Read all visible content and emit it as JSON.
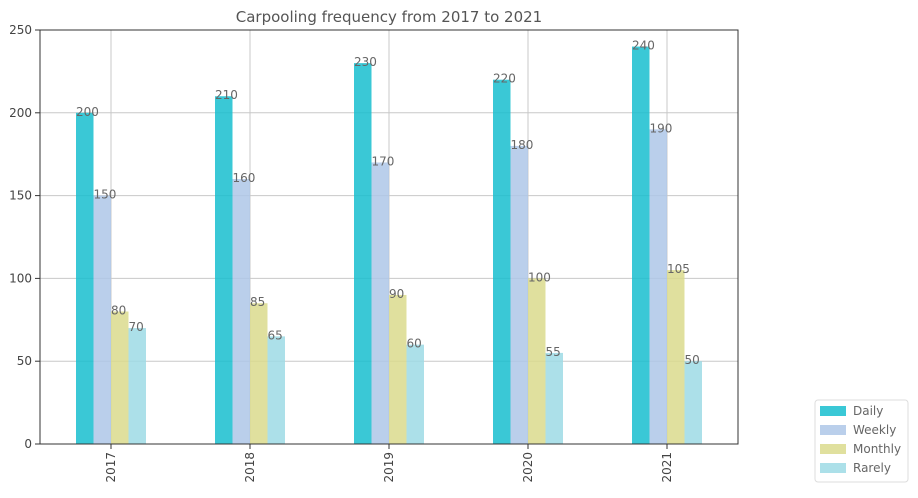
{
  "chart_data": {
    "type": "bar",
    "title": "Carpooling frequency from 2017 to 2021",
    "xlabel": "",
    "ylabel": "",
    "categories": [
      "2017",
      "2018",
      "2019",
      "2020",
      "2021"
    ],
    "ylim": [
      0,
      250
    ],
    "yticks": [
      0,
      50,
      100,
      150,
      200,
      250
    ],
    "grid": true,
    "legend_position": "bottom-right",
    "series": [
      {
        "name": "Daily",
        "color": "#17becf",
        "values": [
          200,
          210,
          230,
          220,
          240
        ]
      },
      {
        "name": "Weekly",
        "color": "#aec7e8",
        "values": [
          150,
          160,
          170,
          180,
          190
        ]
      },
      {
        "name": "Monthly",
        "color": "#dbdb8d",
        "values": [
          80,
          85,
          90,
          100,
          105
        ]
      },
      {
        "name": "Rarely",
        "color": "#9edae5",
        "values": [
          70,
          65,
          60,
          55,
          50
        ]
      }
    ]
  }
}
